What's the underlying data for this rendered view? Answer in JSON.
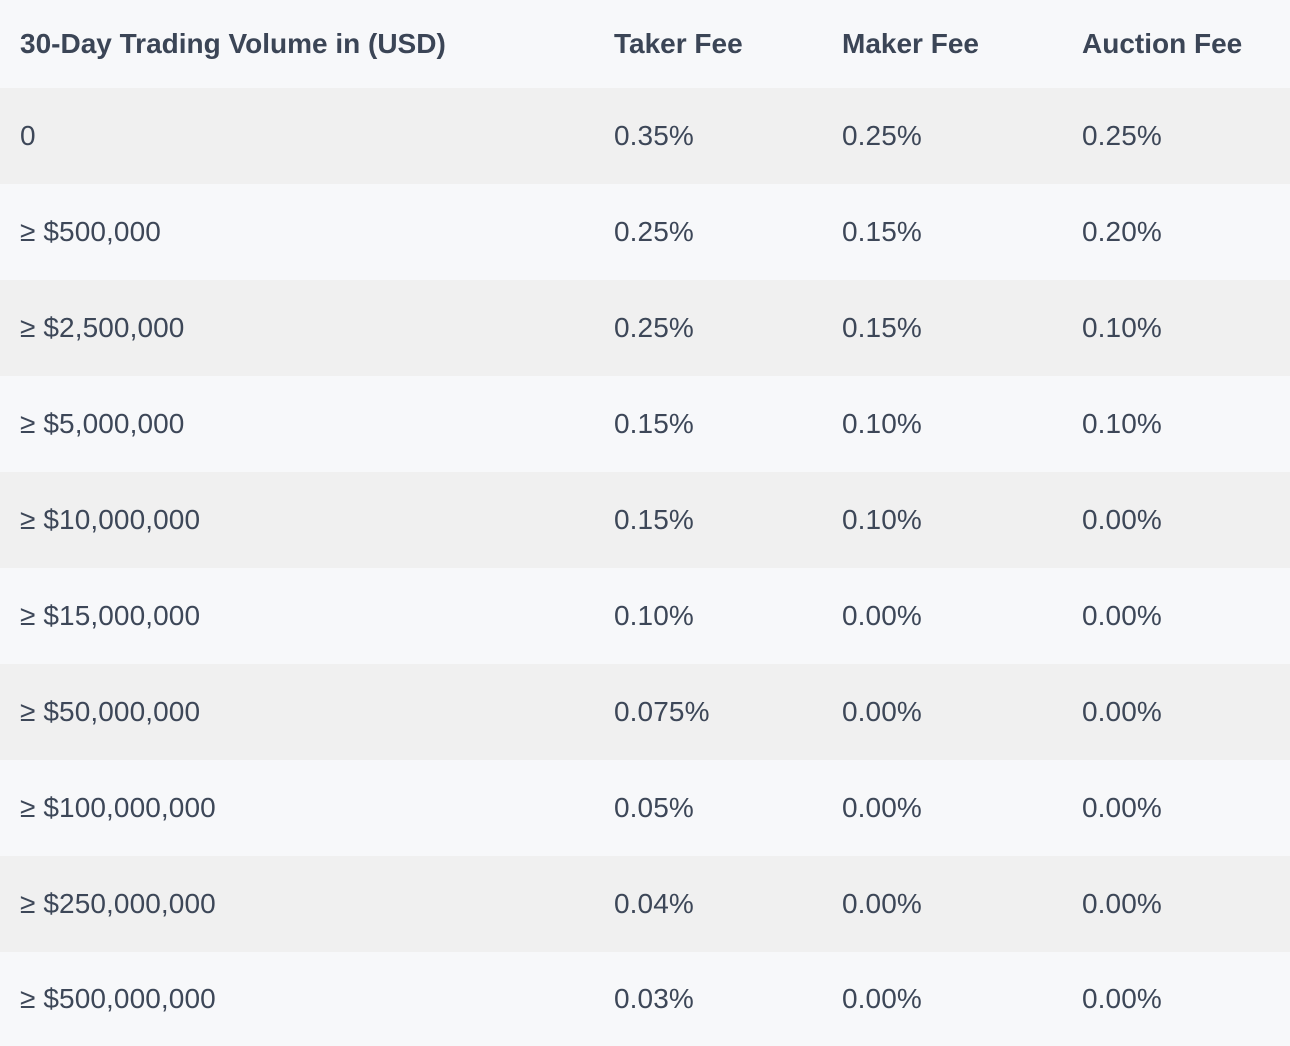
{
  "table": {
    "headers": [
      "30-Day Trading Volume in (USD)",
      "Taker Fee",
      "Maker Fee",
      "Auction Fee"
    ],
    "rows": [
      [
        "0",
        "0.35%",
        "0.25%",
        "0.25%"
      ],
      [
        "≥ $500,000",
        "0.25%",
        "0.15%",
        "0.20%"
      ],
      [
        "≥ $2,500,000",
        "0.25%",
        "0.15%",
        "0.10%"
      ],
      [
        "≥ $5,000,000",
        "0.15%",
        "0.10%",
        "0.10%"
      ],
      [
        "≥ $10,000,000",
        "0.15%",
        "0.10%",
        "0.00%"
      ],
      [
        "≥ $15,000,000",
        "0.10%",
        "0.00%",
        "0.00%"
      ],
      [
        "≥ $50,000,000",
        "0.075%",
        "0.00%",
        "0.00%"
      ],
      [
        "≥ $100,000,000",
        "0.05%",
        "0.00%",
        "0.00%"
      ],
      [
        "≥ $250,000,000",
        "0.04%",
        "0.00%",
        "0.00%"
      ],
      [
        "≥ $500,000,000",
        "0.03%",
        "0.00%",
        "0.00%"
      ]
    ]
  },
  "colors": {
    "text": "#3d4758",
    "row_shaded": "#f0f0f0",
    "row_plain": "#f7f8fa"
  }
}
